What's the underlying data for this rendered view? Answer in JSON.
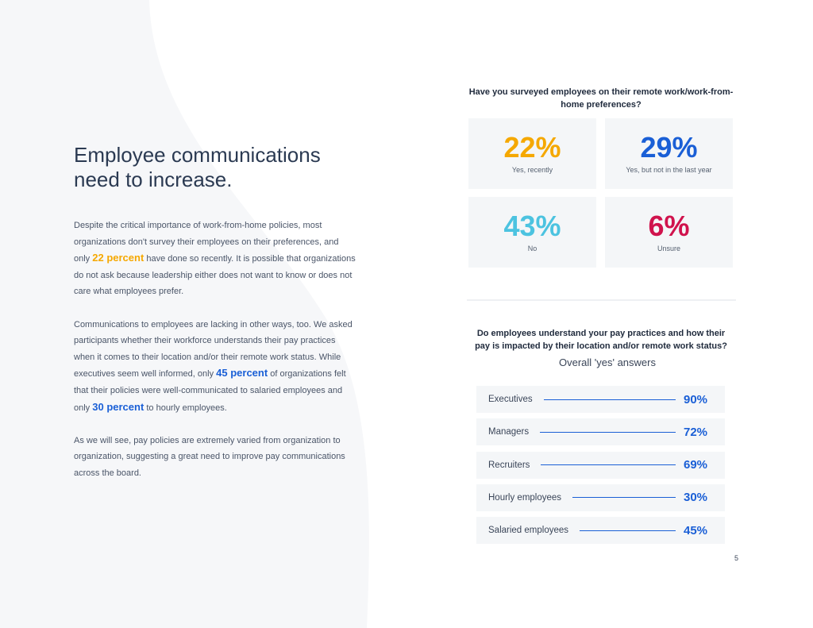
{
  "heading": "Employee communications need to increase.",
  "paragraphs": [
    [
      "Despite the critical importance of work-from-home policies, most organizations don't survey their employees on their preferences, and only ",
      {
        "text": "22 percent",
        "color": "#f5a800"
      },
      " have done so recently. It is possible that organizations do not ask because leadership either does not want to know or does not care what employees prefer."
    ],
    [
      "Communications to employees are lacking in other ways, too. We asked participants whether their workforce understands their pay practices when it comes to their location and/or their remote work status. While executives seem well informed, only ",
      {
        "text": "45 percent",
        "color": "#1a5fd6"
      },
      " of organizations felt that their policies were well-communicated to salaried employees and only ",
      {
        "text": "30 percent",
        "color": "#1a5fd6"
      },
      " to hourly employees."
    ],
    [
      "As we will see, pay policies are extremely varied from organization to organization, suggesting a great need to improve pay communications across the board."
    ]
  ],
  "survey1": {
    "question": "Have you surveyed employees on their remote work/work-from-home preferences?",
    "stats": [
      {
        "value": "22%",
        "label": "Yes, recently",
        "color": "#f5a800"
      },
      {
        "value": "29%",
        "label": "Yes, but not in the last year",
        "color": "#1a5fd6"
      },
      {
        "value": "43%",
        "label": "No",
        "color": "#4cc3e0"
      },
      {
        "value": "6%",
        "label": "Unsure",
        "color": "#d0134d"
      }
    ]
  },
  "survey2": {
    "question": "Do employees understand your pay practices and how their pay is impacted by their location and/or remote work status?",
    "subtitle": "Overall 'yes' answers",
    "rows": [
      {
        "label": "Executives",
        "value": "90%"
      },
      {
        "label": "Managers",
        "value": "72%"
      },
      {
        "label": "Recruiters",
        "value": "69%"
      },
      {
        "label": "Hourly employees",
        "value": "30%"
      },
      {
        "label": "Salaried employees",
        "value": "45%"
      }
    ]
  },
  "page_number": "5"
}
